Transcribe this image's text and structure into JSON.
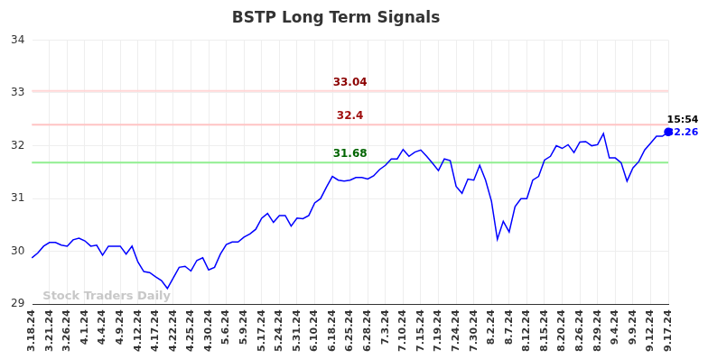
{
  "chart_data": {
    "type": "line",
    "title": "BSTP Long Term Signals",
    "categories": [
      "3.18.24",
      null,
      null,
      "3.21.24",
      null,
      null,
      "3.26.24",
      null,
      null,
      "4.1.24",
      null,
      null,
      "4.4.24",
      null,
      null,
      "4.9.24",
      null,
      null,
      "4.12.24",
      null,
      null,
      "4.17.24",
      null,
      null,
      "4.22.24",
      null,
      null,
      "4.25.24",
      null,
      null,
      "4.30.24",
      null,
      null,
      "5.6.24",
      null,
      null,
      "5.9.24",
      null,
      null,
      "5.17.24",
      null,
      null,
      "5.24.24",
      null,
      null,
      "5.31.24",
      null,
      null,
      "6.10.24",
      null,
      null,
      "6.18.24",
      null,
      null,
      "6.25.24",
      null,
      null,
      "6.28.24",
      null,
      null,
      "7.3.24",
      null,
      null,
      "7.10.24",
      null,
      null,
      "7.15.24",
      null,
      null,
      "7.19.24",
      null,
      null,
      "7.24.24",
      null,
      null,
      "7.30.24",
      null,
      null,
      "8.2.24",
      null,
      null,
      "8.7.24",
      null,
      null,
      "8.12.24",
      null,
      null,
      "8.15.24",
      null,
      null,
      "8.20.24",
      null,
      null,
      "8.26.24",
      null,
      null,
      "8.29.24",
      null,
      null,
      "9.4.24",
      null,
      null,
      "9.9.24",
      null,
      null,
      "9.12.24",
      null,
      null,
      "9.17.24"
    ],
    "values": [
      29.88,
      29.97,
      30.1,
      30.17,
      30.17,
      30.12,
      30.1,
      30.22,
      30.25,
      30.2,
      30.1,
      30.12,
      29.93,
      30.1,
      30.1,
      30.1,
      29.95,
      30.1,
      29.8,
      29.62,
      29.6,
      29.52,
      29.45,
      29.3,
      29.5,
      29.7,
      29.72,
      29.63,
      29.83,
      29.88,
      29.65,
      29.7,
      29.95,
      30.13,
      30.18,
      30.18,
      30.27,
      30.33,
      30.42,
      30.63,
      30.72,
      30.55,
      30.68,
      30.68,
      30.48,
      30.63,
      30.62,
      30.68,
      30.92,
      31.0,
      31.22,
      31.42,
      31.35,
      31.33,
      31.35,
      31.4,
      31.4,
      31.37,
      31.43,
      31.55,
      31.63,
      31.75,
      31.75,
      31.93,
      31.8,
      31.88,
      31.92,
      31.8,
      31.67,
      31.53,
      31.75,
      31.72,
      31.23,
      31.1,
      31.37,
      31.35,
      31.63,
      31.35,
      30.95,
      30.23,
      30.57,
      30.37,
      30.85,
      31.0,
      31.0,
      31.35,
      31.42,
      31.73,
      31.8,
      32.0,
      31.95,
      32.02,
      31.87,
      32.07,
      32.08,
      32.0,
      32.02,
      32.23,
      31.77,
      31.77,
      31.68,
      31.33,
      31.58,
      31.7,
      31.92,
      32.05,
      32.18,
      32.18,
      32.26
    ],
    "color": "#0000ff",
    "ylim": [
      29,
      34
    ],
    "yticks": [
      29,
      30,
      31,
      32,
      33,
      34
    ],
    "grid": true,
    "annotations": [
      {
        "value": 33.04,
        "label": "33.04",
        "color": "#ffd6d6"
      },
      {
        "value": 32.4,
        "label": "32.4",
        "color": "#ffc4c4"
      },
      {
        "value": 31.68,
        "label": "31.68",
        "color": "#90ee90"
      }
    ],
    "end_label": {
      "time": "15:54",
      "value": 32.26
    },
    "watermark": "Stock Traders Daily"
  }
}
